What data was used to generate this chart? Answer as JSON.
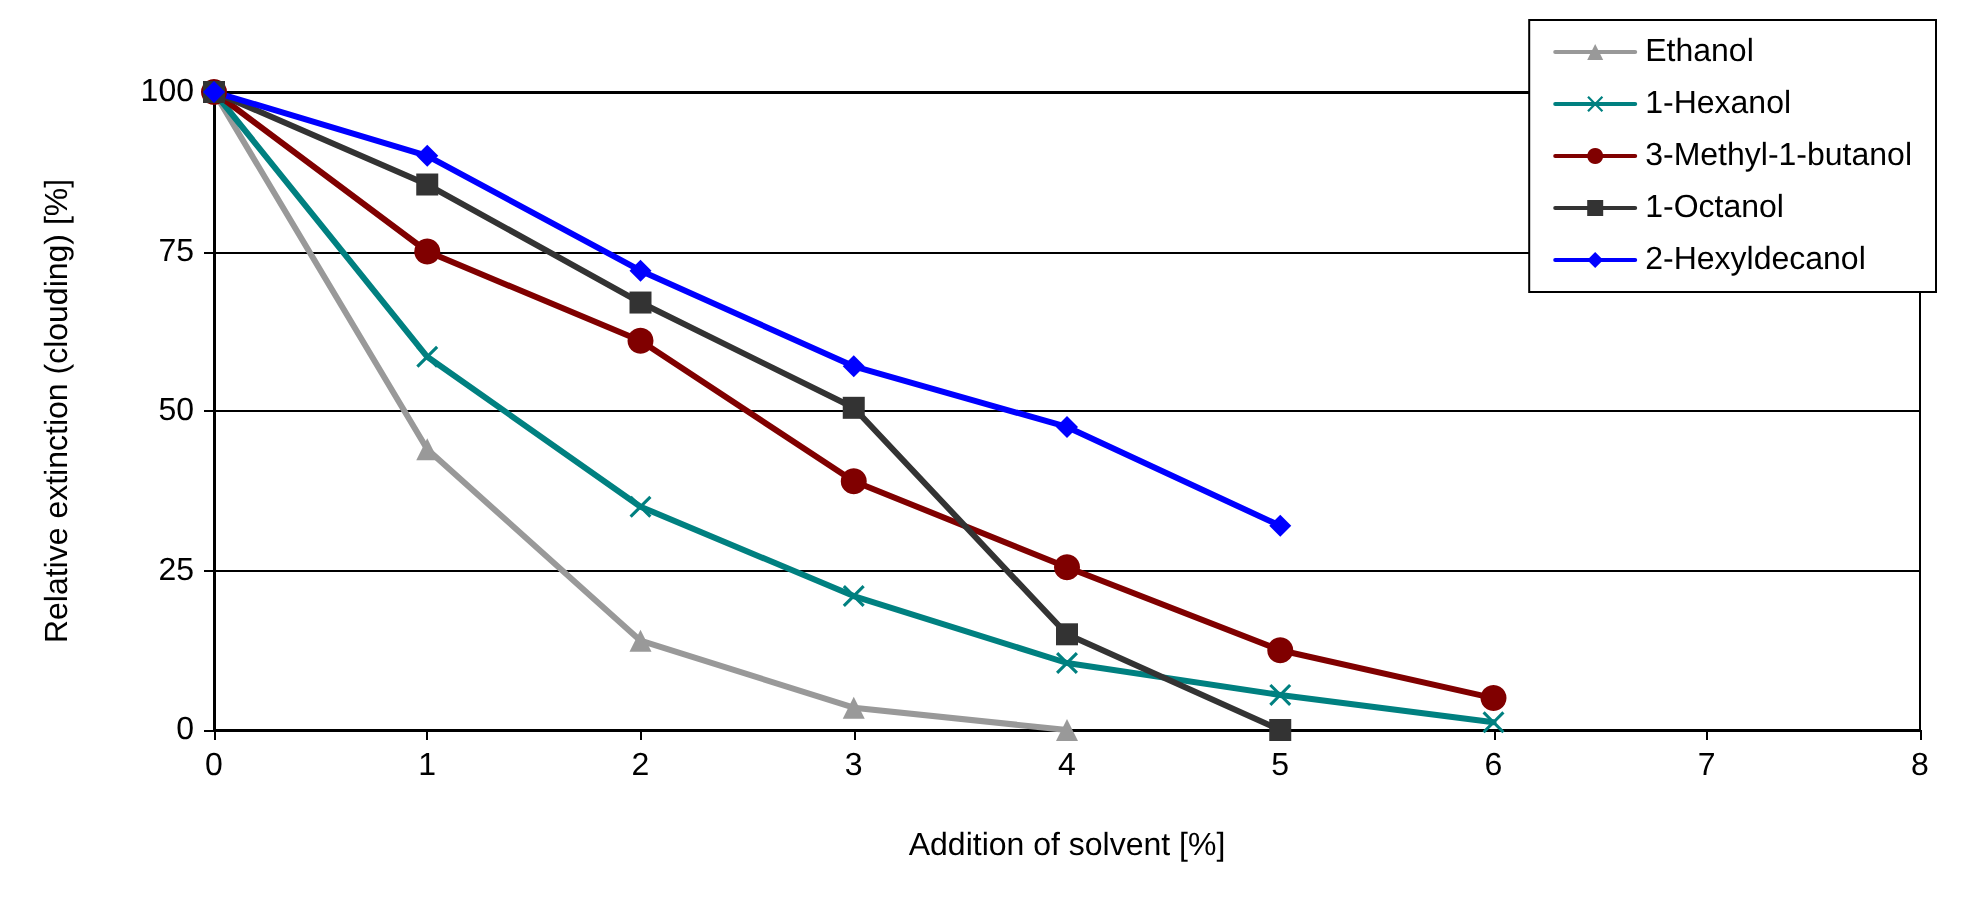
{
  "chart_data": {
    "type": "line",
    "xlabel": "Addition of solvent [%]",
    "ylabel": "Relative extinction (clouding) [%]",
    "x": [
      0,
      1,
      2,
      3,
      4,
      5,
      6
    ],
    "series": [
      {
        "name": "Ethanol",
        "color": "#999999",
        "marker": "triangle",
        "values": [
          100,
          44,
          14,
          3.5,
          0,
          null,
          null
        ]
      },
      {
        "name": "1-Hexanol",
        "color": "#008080",
        "marker": "cross",
        "values": [
          100,
          58.5,
          35,
          21,
          10.5,
          5.5,
          1.2
        ]
      },
      {
        "name": "3-Methyl-1-butanol",
        "color": "#800000",
        "marker": "circle",
        "values": [
          100,
          75,
          61,
          39,
          25.5,
          12.5,
          5
        ]
      },
      {
        "name": "1-Octanol",
        "color": "#333333",
        "marker": "square",
        "values": [
          100,
          85.5,
          67,
          50.5,
          15,
          0,
          null
        ]
      },
      {
        "name": "2-Hexyldecanol",
        "color": "#0000ff",
        "marker": "diamond",
        "values": [
          100,
          90,
          72,
          57,
          47.5,
          32,
          null
        ]
      }
    ],
    "xlim": [
      0,
      8
    ],
    "xticks": [
      0,
      1,
      2,
      3,
      4,
      5,
      6,
      7,
      8
    ],
    "ylim": [
      0,
      100
    ],
    "yticks": [
      0,
      25,
      50,
      75,
      100
    ],
    "grid": "y",
    "legend": "top right",
    "line_style": "solid"
  }
}
